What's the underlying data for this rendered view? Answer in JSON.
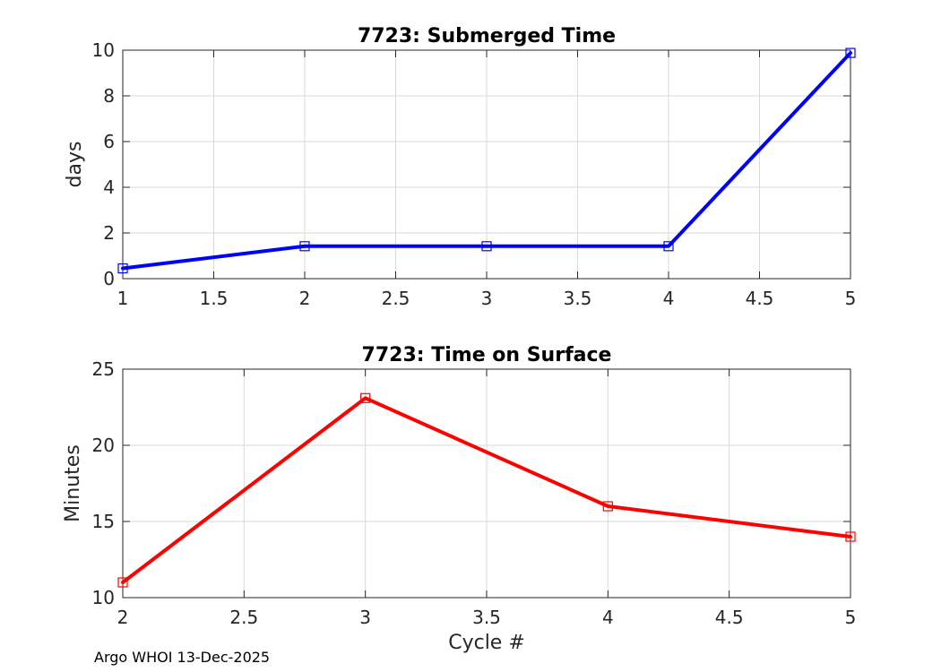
{
  "colors": {
    "background": "#ffffff",
    "axes": "#262626",
    "grid": "#d9d9d9",
    "series_top": "#0000ff",
    "series_bottom": "#ff0000"
  },
  "footer": {
    "text": "Argo WHOI 13-Dec-2025"
  },
  "chart_data": [
    {
      "type": "line",
      "title": "7723: Submerged Time",
      "xlabel": "",
      "ylabel": "days",
      "xlim": [
        1,
        5
      ],
      "ylim": [
        0,
        10
      ],
      "xticks": [
        1,
        1.5,
        2,
        2.5,
        3,
        3.5,
        4,
        4.5,
        5
      ],
      "xtick_labels": [
        "1",
        "1.5",
        "2",
        "2.5",
        "3",
        "3.5",
        "4",
        "4.5",
        "5"
      ],
      "yticks": [
        0,
        2,
        4,
        6,
        8,
        10
      ],
      "ytick_labels": [
        "0",
        "2",
        "4",
        "6",
        "8",
        "10"
      ],
      "grid": true,
      "series": [
        {
          "name": "Submerged Time",
          "color": "#0000ff",
          "marker": "square",
          "x": [
            1,
            2,
            3,
            4,
            5
          ],
          "values": [
            0.45,
            1.42,
            1.42,
            1.42,
            9.88
          ]
        }
      ]
    },
    {
      "type": "line",
      "title": "7723: Time on Surface",
      "xlabel": "Cycle #",
      "ylabel": "Minutes",
      "xlim": [
        2,
        5
      ],
      "ylim": [
        10,
        25
      ],
      "xticks": [
        2,
        2.5,
        3,
        3.5,
        4,
        4.5,
        5
      ],
      "xtick_labels": [
        "2",
        "2.5",
        "3",
        "3.5",
        "4",
        "4.5",
        "5"
      ],
      "yticks": [
        10,
        15,
        20,
        25
      ],
      "ytick_labels": [
        "10",
        "15",
        "20",
        "25"
      ],
      "grid": true,
      "series": [
        {
          "name": "Time on Surface",
          "color": "#ff0000",
          "marker": "square",
          "x": [
            2,
            3,
            4,
            5
          ],
          "values": [
            11,
            23.1,
            16,
            14
          ]
        }
      ]
    }
  ]
}
